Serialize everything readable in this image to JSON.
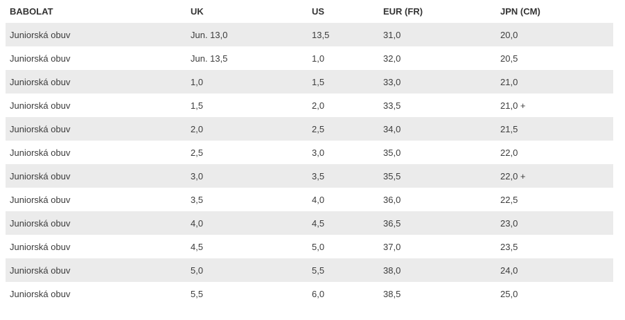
{
  "table": {
    "columns": [
      {
        "key": "brand",
        "label": "BABOLAT"
      },
      {
        "key": "uk",
        "label": "UK"
      },
      {
        "key": "us",
        "label": "US"
      },
      {
        "key": "eur",
        "label": "EUR (FR)"
      },
      {
        "key": "jpn",
        "label": "JPN (CM)"
      }
    ],
    "rows": [
      {
        "brand": "Juniorská obuv",
        "uk": "Jun. 13,0",
        "us": "13,5",
        "eur": "31,0",
        "jpn": "20,0"
      },
      {
        "brand": "Juniorská obuv",
        "uk": "Jun. 13,5",
        "us": "1,0",
        "eur": "32,0",
        "jpn": "20,5"
      },
      {
        "brand": "Juniorská obuv",
        "uk": "1,0",
        "us": "1,5",
        "eur": "33,0",
        "jpn": "21,0"
      },
      {
        "brand": "Juniorská obuv",
        "uk": "1,5",
        "us": "2,0",
        "eur": "33,5",
        "jpn": "21,0 +"
      },
      {
        "brand": "Juniorská obuv",
        "uk": "2,0",
        "us": "2,5",
        "eur": "34,0",
        "jpn": "21,5"
      },
      {
        "brand": "Juniorská obuv",
        "uk": "2,5",
        "us": "3,0",
        "eur": "35,0",
        "jpn": "22,0"
      },
      {
        "brand": "Juniorská obuv",
        "uk": "3,0",
        "us": "3,5",
        "eur": "35,5",
        "jpn": "22,0 +"
      },
      {
        "brand": "Juniorská obuv",
        "uk": "3,5",
        "us": "4,0",
        "eur": "36,0",
        "jpn": "22,5"
      },
      {
        "brand": "Juniorská obuv",
        "uk": "4,0",
        "us": "4,5",
        "eur": "36,5",
        "jpn": "23,0"
      },
      {
        "brand": "Juniorská obuv",
        "uk": "4,5",
        "us": "5,0",
        "eur": "37,0",
        "jpn": "23,5"
      },
      {
        "brand": "Juniorská obuv",
        "uk": "5,0",
        "us": "5,5",
        "eur": "38,0",
        "jpn": "24,0"
      },
      {
        "brand": "Juniorská obuv",
        "uk": "5,5",
        "us": "6,0",
        "eur": "38,5",
        "jpn": "25,0"
      }
    ]
  },
  "colors": {
    "stripe": "#ebebeb",
    "header_text": "#333333",
    "cell_text": "#3c3c3c",
    "background": "#ffffff"
  }
}
